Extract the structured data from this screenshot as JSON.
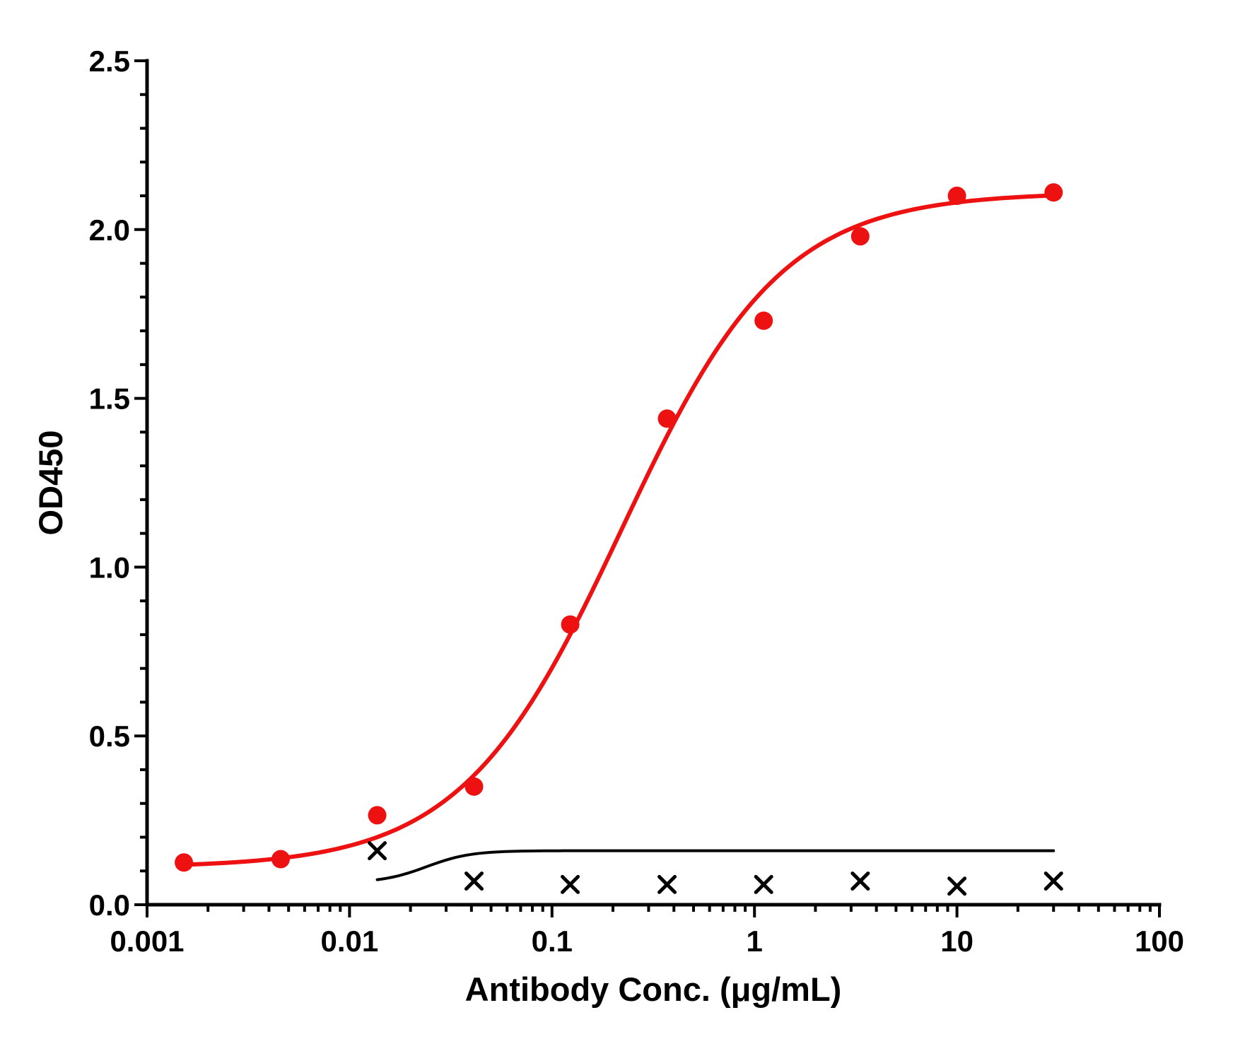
{
  "chart_data": {
    "type": "scatter",
    "xlabel": "Antibody Conc. (μg/mL)",
    "ylabel": "OD450",
    "x_scale": "log",
    "xlim": [
      0.001,
      100
    ],
    "ylim": [
      0,
      2.5
    ],
    "x_ticks": [
      {
        "value": 0.001,
        "label": "0.001"
      },
      {
        "value": 0.01,
        "label": "0.01"
      },
      {
        "value": 0.1,
        "label": "0.1"
      },
      {
        "value": 1,
        "label": "1"
      },
      {
        "value": 10,
        "label": "10"
      },
      {
        "value": 100,
        "label": "100"
      }
    ],
    "y_ticks": [
      {
        "value": 0,
        "label": "0.0"
      },
      {
        "value": 0.5,
        "label": "0.5"
      },
      {
        "value": 1.0,
        "label": "1.0"
      },
      {
        "value": 1.5,
        "label": "1.5"
      },
      {
        "value": 2.0,
        "label": "2.0"
      },
      {
        "value": 2.5,
        "label": "2.5"
      }
    ],
    "grid": false,
    "legend": "none",
    "series": [
      {
        "color": "#ee1111",
        "marker": "circle",
        "x": [
          0.00152,
          0.00457,
          0.0137,
          0.0412,
          0.123,
          0.37,
          1.11,
          3.33,
          10,
          30
        ],
        "y": [
          0.125,
          0.135,
          0.265,
          0.35,
          0.83,
          1.44,
          1.73,
          1.98,
          2.1,
          2.11
        ],
        "fit": {
          "bottom": 0.11,
          "top": 2.11,
          "ec50": 0.22,
          "hill": 1.1
        }
      },
      {
        "color": "#000000",
        "marker": "x",
        "x": [
          0.0137,
          0.0412,
          0.123,
          0.37,
          1.11,
          3.33,
          10,
          30
        ],
        "y": [
          0.16,
          0.07,
          0.06,
          0.06,
          0.06,
          0.07,
          0.055,
          0.07
        ],
        "fit": {
          "bottom": 0.065,
          "top": 0.16,
          "ec50": 0.024,
          "hill": 4
        }
      }
    ]
  }
}
